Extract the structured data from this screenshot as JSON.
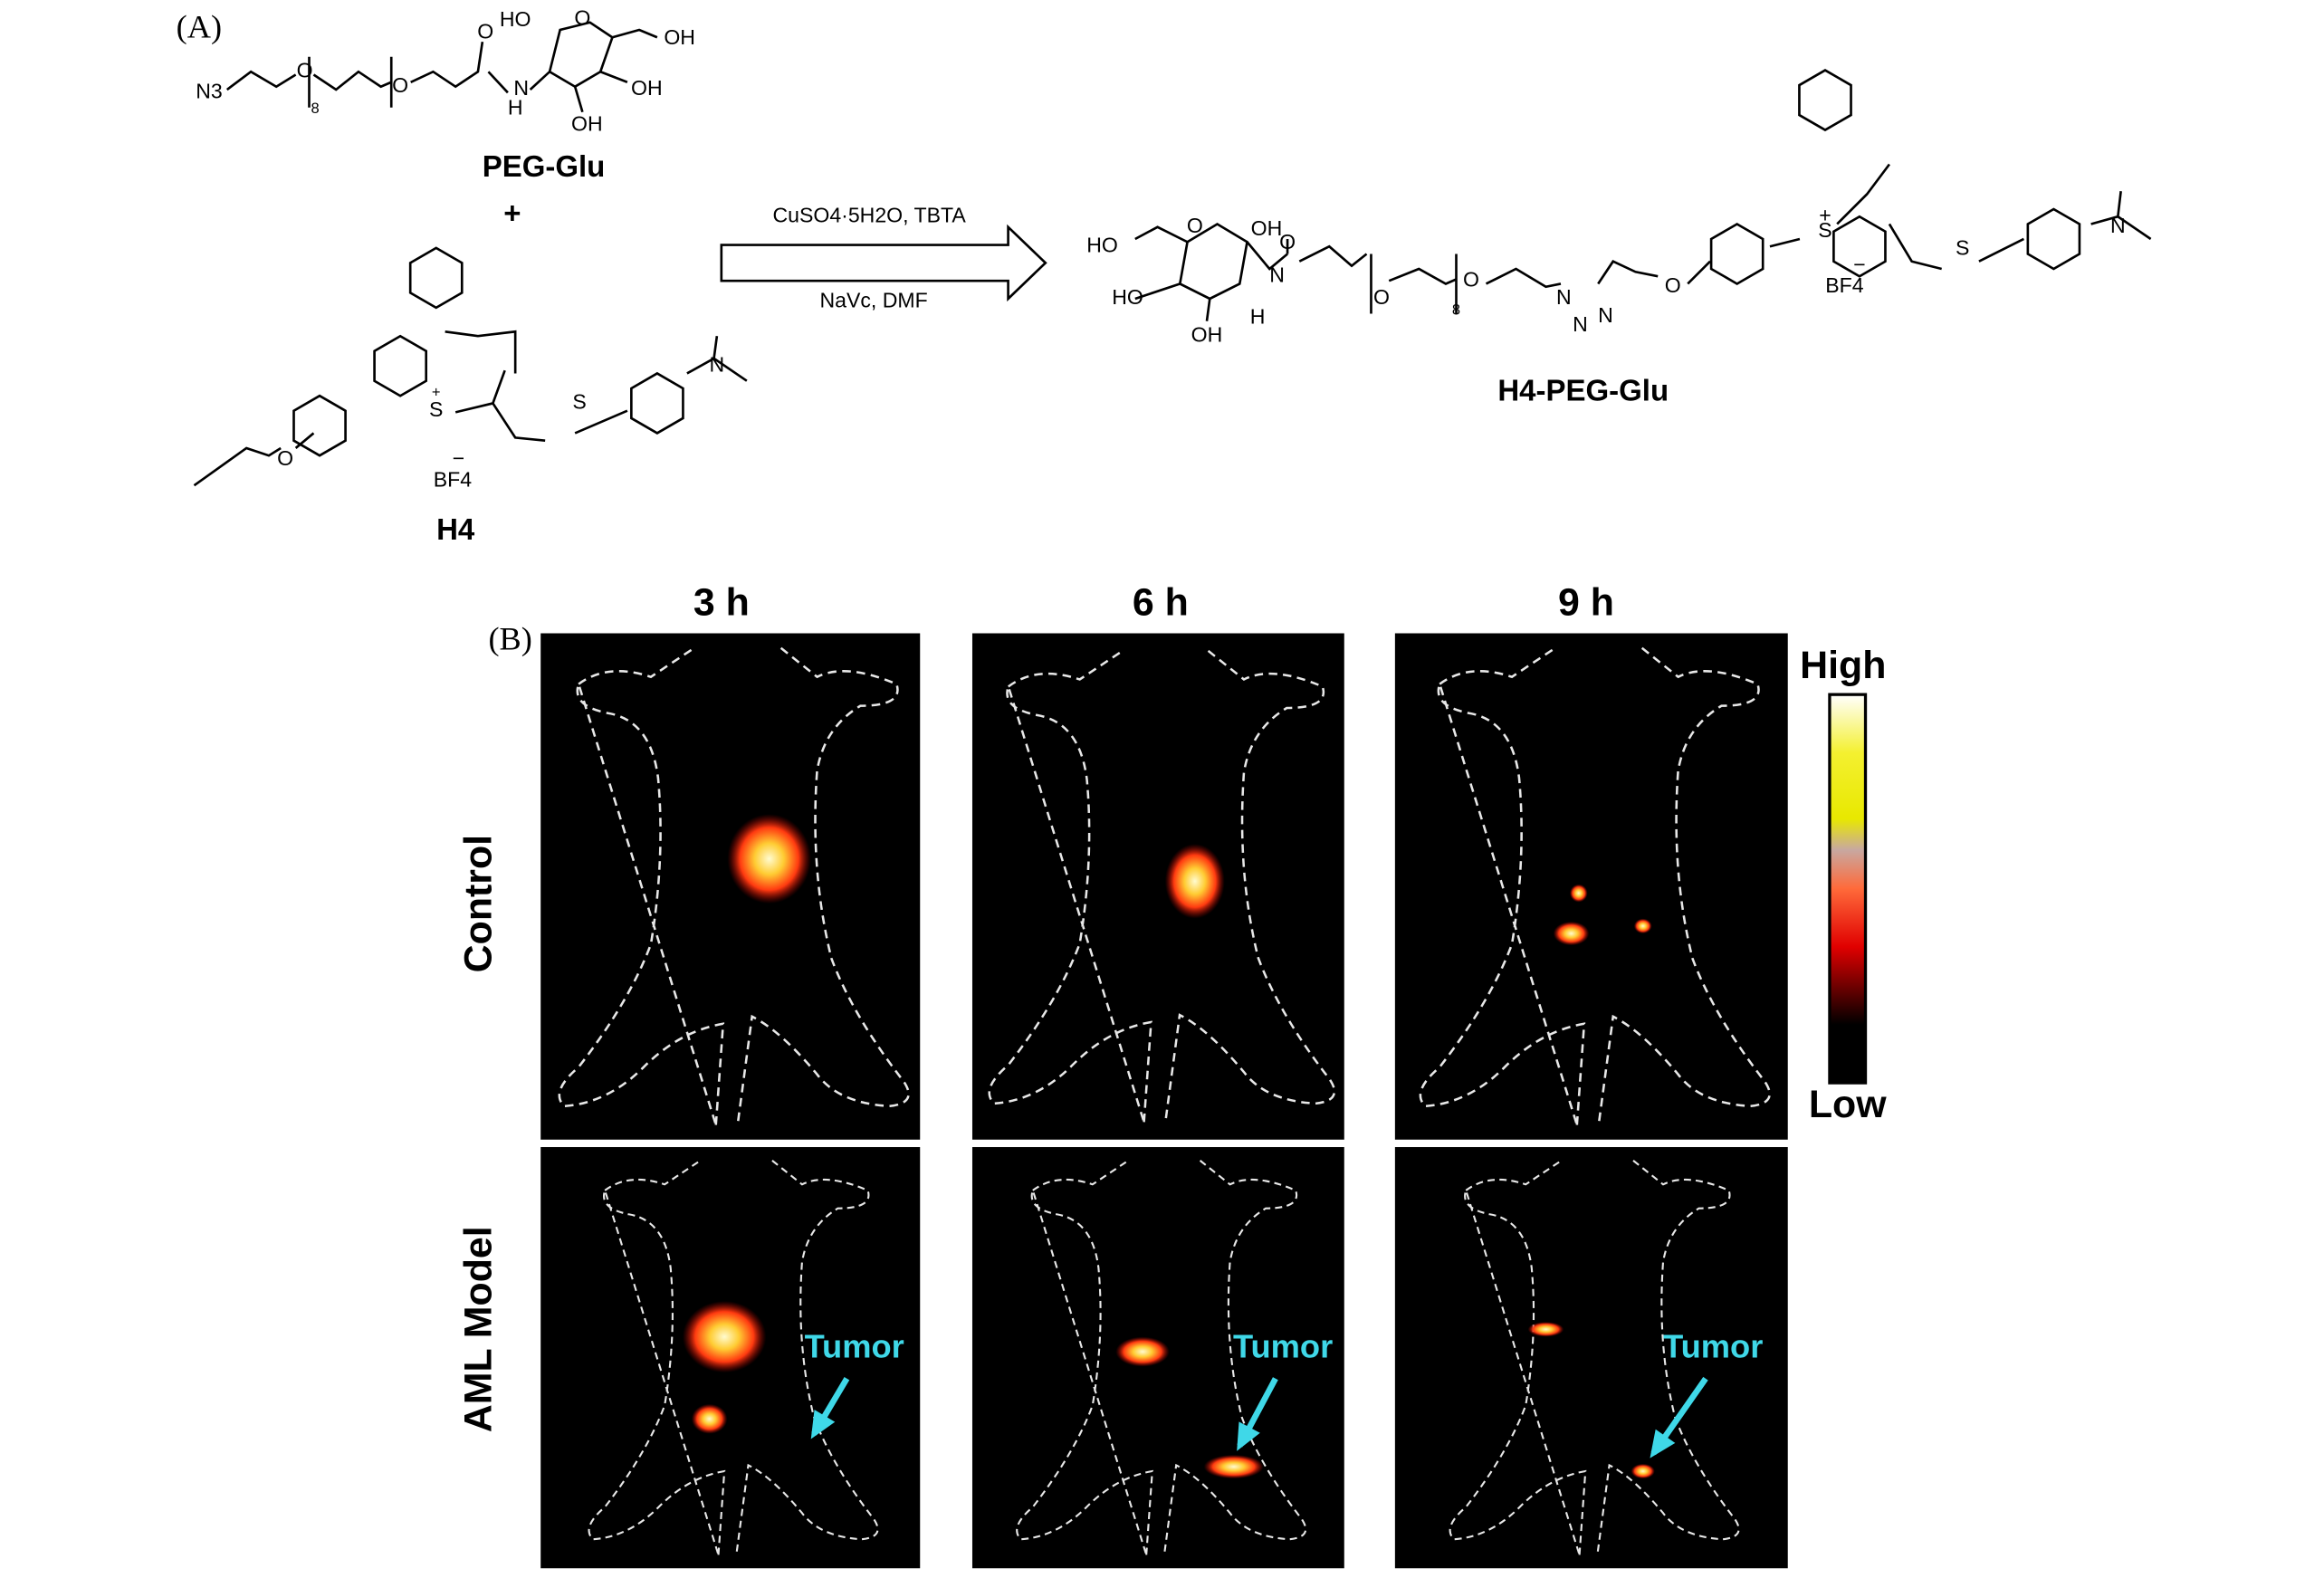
{
  "panel_a": {
    "label": "(A)",
    "peg_glu_atoms": [
      "N3",
      "O",
      "8",
      "O",
      "O",
      "N",
      "H",
      "HO",
      "O",
      "OH",
      "OH",
      "OH"
    ],
    "peg_glu_name": "PEG-Glu",
    "plus": "+",
    "h4_atoms": [
      "O",
      "S",
      "+",
      "BF4",
      "−",
      "S",
      "N"
    ],
    "h4_name": "H4",
    "conditions_top": "CuSO4·5H2O, TBTA",
    "conditions_bottom": "NaVc, DMF",
    "product_atoms": [
      "HO",
      "O",
      "OH",
      "HO",
      "OH",
      "N",
      "H",
      "O",
      "O",
      "8",
      "O",
      "N",
      "N",
      "N",
      "O",
      "S",
      "+",
      "BF4",
      "−",
      "S",
      "N"
    ],
    "product_name": "H4-PEG-Glu"
  },
  "panel_b": {
    "label": "(B)",
    "columns": [
      "3 h",
      "6 h",
      "9 h"
    ],
    "rows": [
      "Control",
      "AML Model"
    ],
    "scale_high": "High",
    "scale_low": "Low",
    "annotations": [
      "Tumor",
      "Tumor",
      "Tumor"
    ]
  }
}
